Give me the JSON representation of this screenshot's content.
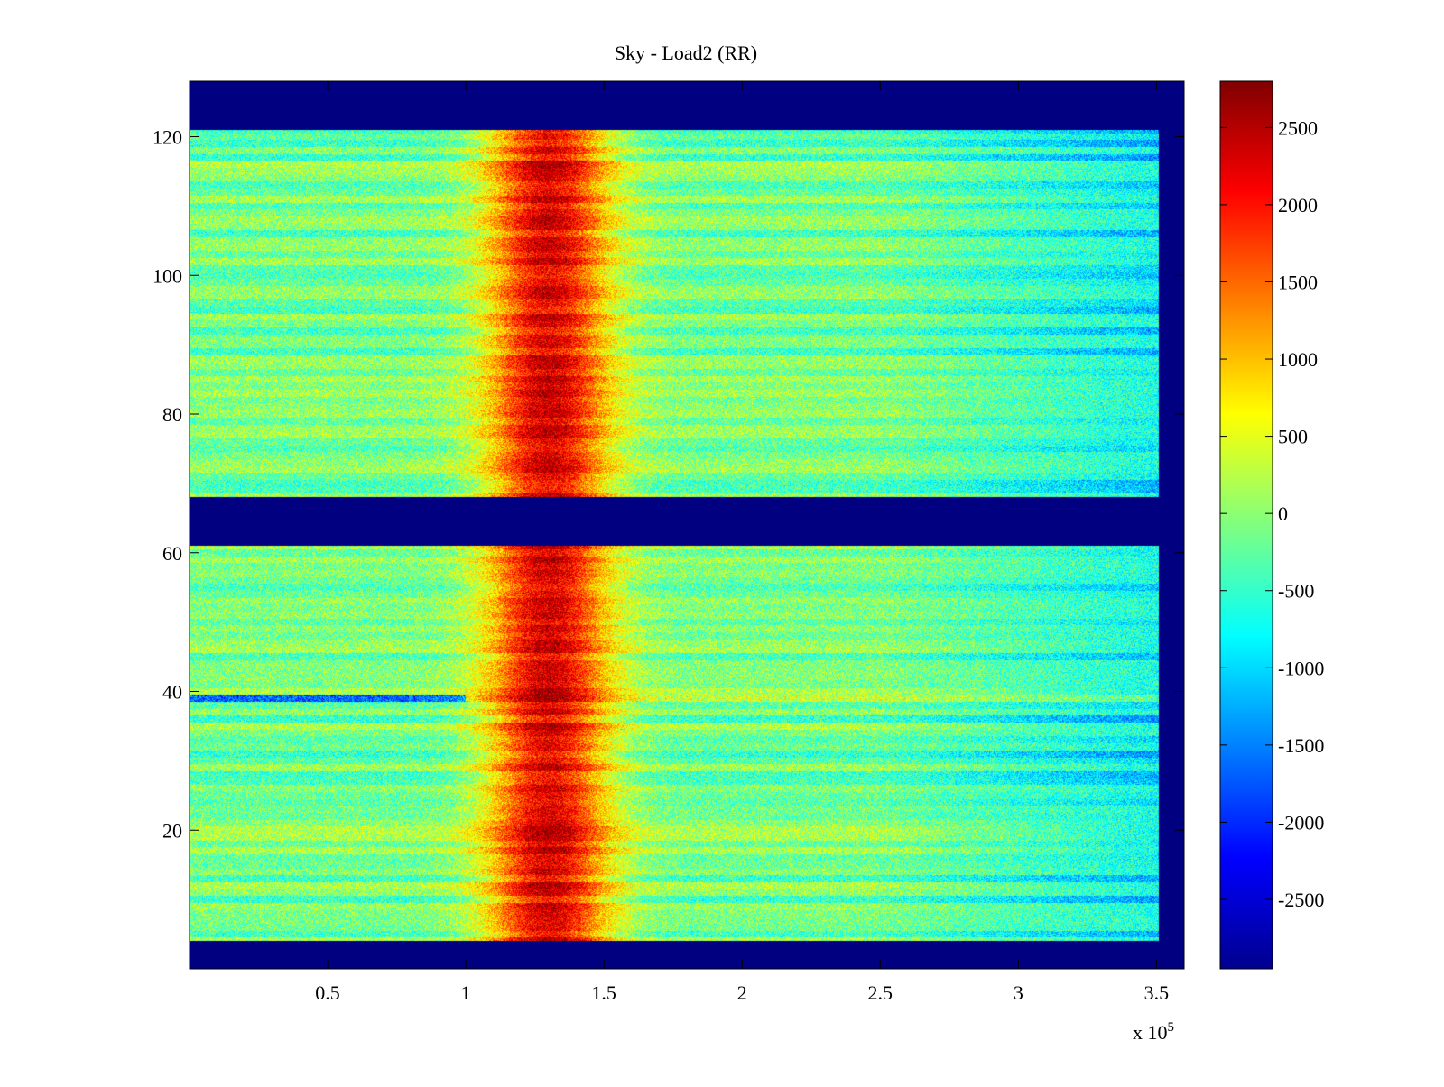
{
  "chart_data": {
    "type": "heatmap",
    "title": "Sky - Load2 (RR)",
    "xlabel": "",
    "ylabel": "",
    "x_multiplier_label": "x 10",
    "x_multiplier_exponent": "5",
    "xlim": [
      0,
      360000
    ],
    "ylim": [
      0,
      128
    ],
    "x_ticks": [
      {
        "value": 50000,
        "label": "0.5"
      },
      {
        "value": 100000,
        "label": "1"
      },
      {
        "value": 150000,
        "label": "1.5"
      },
      {
        "value": 200000,
        "label": "2"
      },
      {
        "value": 250000,
        "label": "2.5"
      },
      {
        "value": 300000,
        "label": "3"
      },
      {
        "value": 350000,
        "label": "3.5"
      }
    ],
    "y_ticks": [
      {
        "value": 20,
        "label": "20"
      },
      {
        "value": 40,
        "label": "40"
      },
      {
        "value": 60,
        "label": "60"
      },
      {
        "value": 80,
        "label": "80"
      },
      {
        "value": 100,
        "label": "100"
      },
      {
        "value": 120,
        "label": "120"
      }
    ],
    "colorbar": {
      "colormap": "jet",
      "range": [
        -2950,
        2800
      ],
      "ticks": [
        {
          "value": 2500,
          "label": "2500"
        },
        {
          "value": 2000,
          "label": "2000"
        },
        {
          "value": 1500,
          "label": "1500"
        },
        {
          "value": 1000,
          "label": "1000"
        },
        {
          "value": 500,
          "label": "500"
        },
        {
          "value": 0,
          "label": "0"
        },
        {
          "value": -500,
          "label": "-500"
        },
        {
          "value": -1000,
          "label": "-1000"
        },
        {
          "value": -1500,
          "label": "-1500"
        },
        {
          "value": -2000,
          "label": "-2000"
        },
        {
          "value": -2500,
          "label": "-2500"
        }
      ]
    },
    "data_extent": {
      "x": [
        0,
        351000
      ],
      "channel_blocks": [
        [
          4,
          61
        ],
        [
          68,
          121
        ]
      ]
    },
    "background_value": -2950,
    "features": {
      "peak_center_x": 130000,
      "peak_half_width_x": 22000,
      "peak_amplitude": 2400,
      "base_value": -150,
      "anomaly_row": 39
    }
  }
}
